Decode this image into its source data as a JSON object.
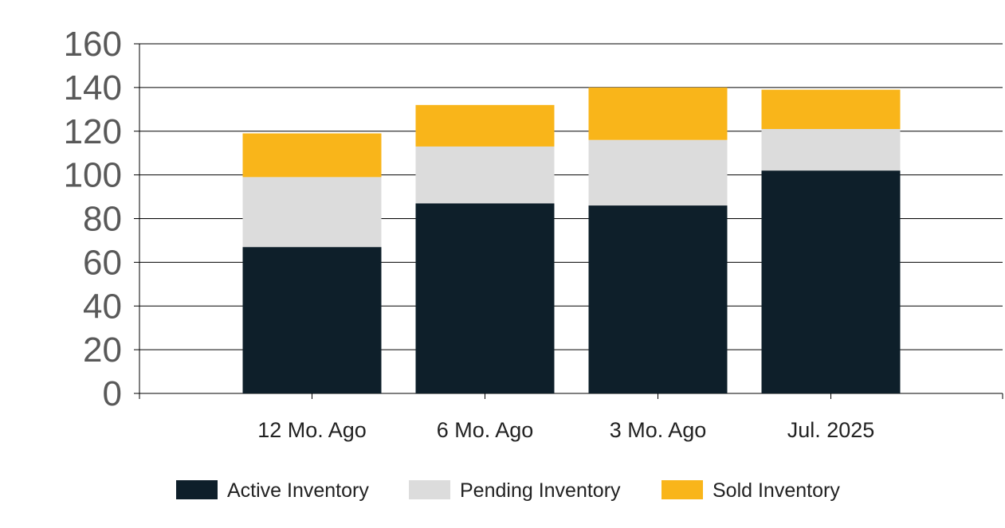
{
  "chart_data": {
    "type": "bar",
    "stacked": true,
    "categories": [
      "12 Mo. Ago",
      "6 Mo. Ago",
      "3 Mo. Ago",
      "Jul. 2025"
    ],
    "series": [
      {
        "name": "Active Inventory",
        "color": "#0e1f2a",
        "values": [
          67,
          87,
          86,
          102
        ]
      },
      {
        "name": "Pending Inventory",
        "color": "#dcdcdc",
        "values": [
          32,
          26,
          30,
          19
        ]
      },
      {
        "name": "Sold Inventory",
        "color": "#f9b51a",
        "values": [
          20,
          19,
          24,
          18
        ]
      }
    ],
    "ylim": [
      0,
      160
    ],
    "yticks": [
      0,
      20,
      40,
      60,
      80,
      100,
      120,
      140,
      160
    ],
    "grid": true,
    "legend": "bottom"
  }
}
